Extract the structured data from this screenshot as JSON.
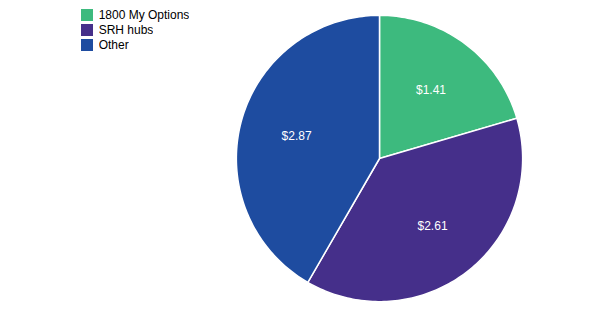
{
  "chart_data": {
    "type": "pie",
    "categories": [
      "1800 My Options",
      "SRH hubs",
      "Other"
    ],
    "values": [
      1.41,
      2.61,
      2.87
    ],
    "value_labels": [
      "$1.41",
      "$2.61",
      "$2.87"
    ],
    "colors": [
      "#3dba7e",
      "#452f8a",
      "#1e4ca0"
    ],
    "data_labels": true,
    "legend": "upper left"
  }
}
